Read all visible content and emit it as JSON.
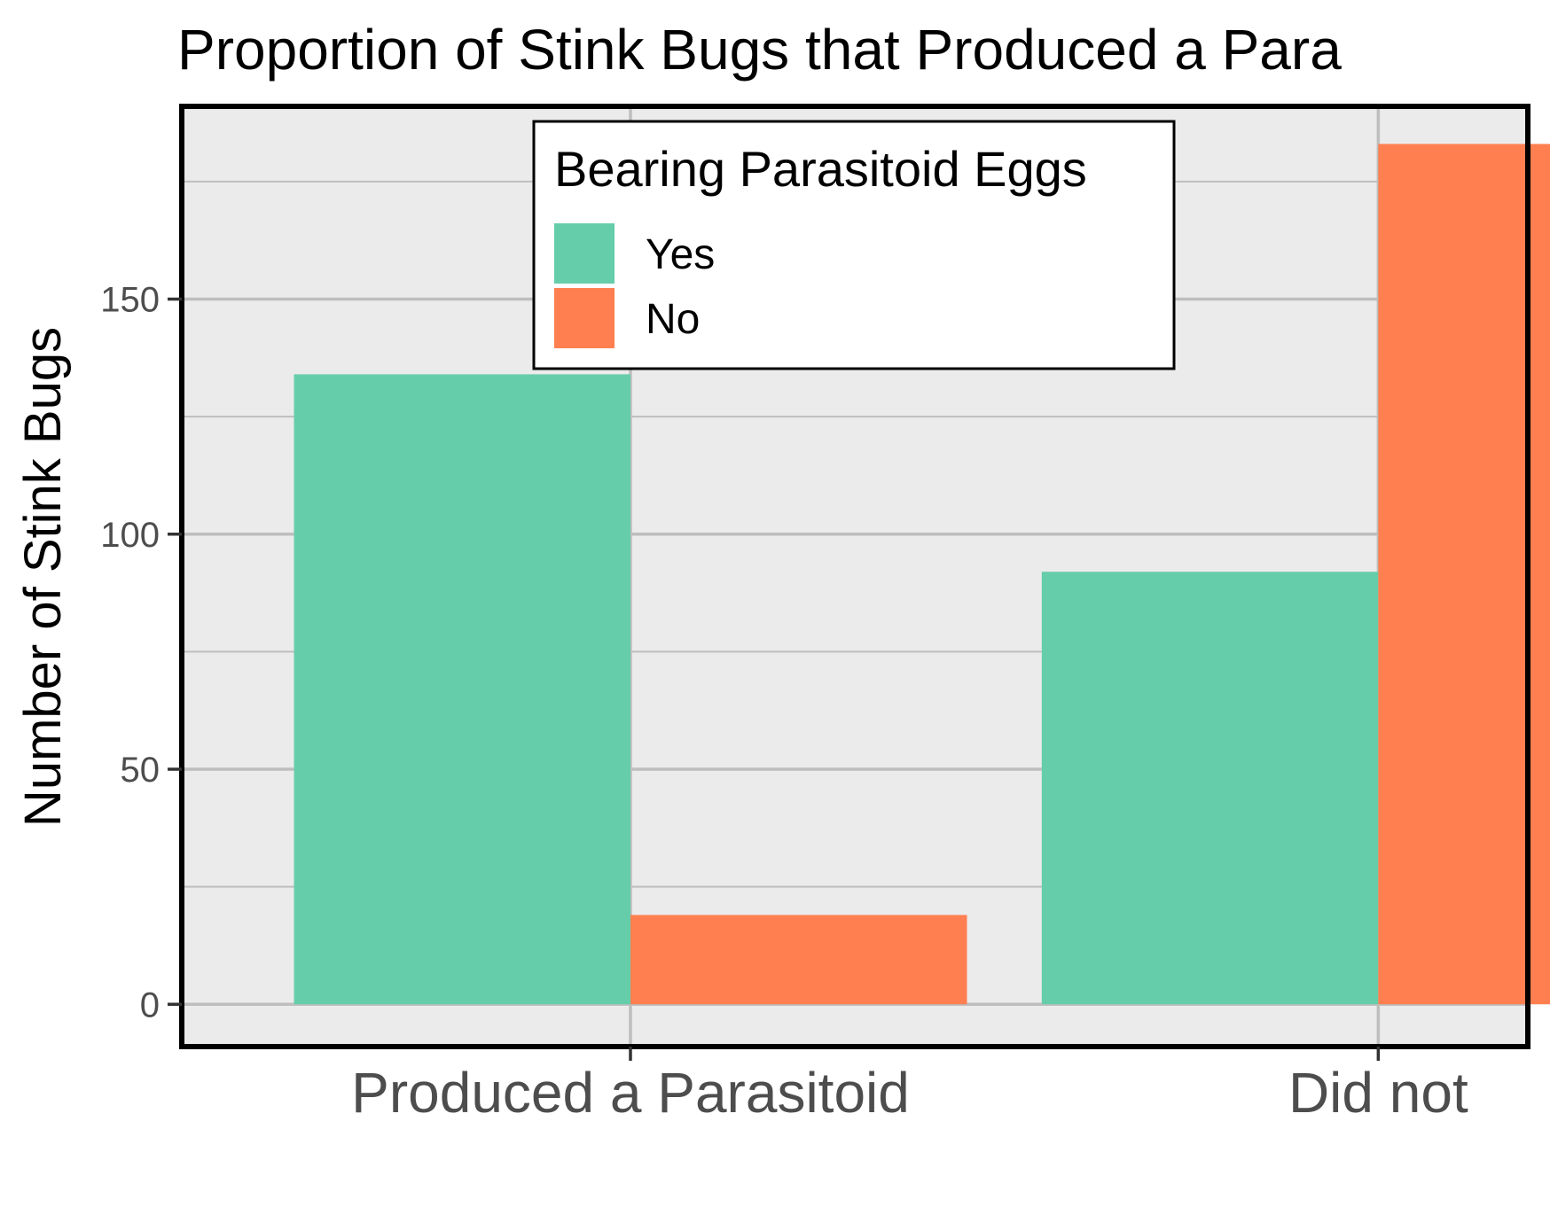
{
  "chart_data": {
    "type": "bar",
    "title": "Proportion of Stink Bugs that Produced a Para",
    "xlabel": "",
    "ylabel": "Number of Stink Bugs",
    "categories": [
      "Produced a Parasitoid",
      "Did not"
    ],
    "series": [
      {
        "name": "Yes",
        "color": "#66cdaa",
        "values": [
          134,
          92
        ]
      },
      {
        "name": "No",
        "color": "#ff7f50",
        "values": [
          19,
          183
        ]
      }
    ],
    "ylim": [
      -9,
      191
    ],
    "yticks": [
      0,
      50,
      100,
      150
    ],
    "ytick_labels": [
      "0",
      "50",
      "100",
      "150"
    ],
    "grid": true,
    "legend": {
      "title": "Bearing Parasitoid Eggs",
      "position": "top-center"
    },
    "colors": {
      "panel_background": "#ebebeb",
      "grid_line": "#bebebe",
      "panel_border": "#000000"
    }
  }
}
